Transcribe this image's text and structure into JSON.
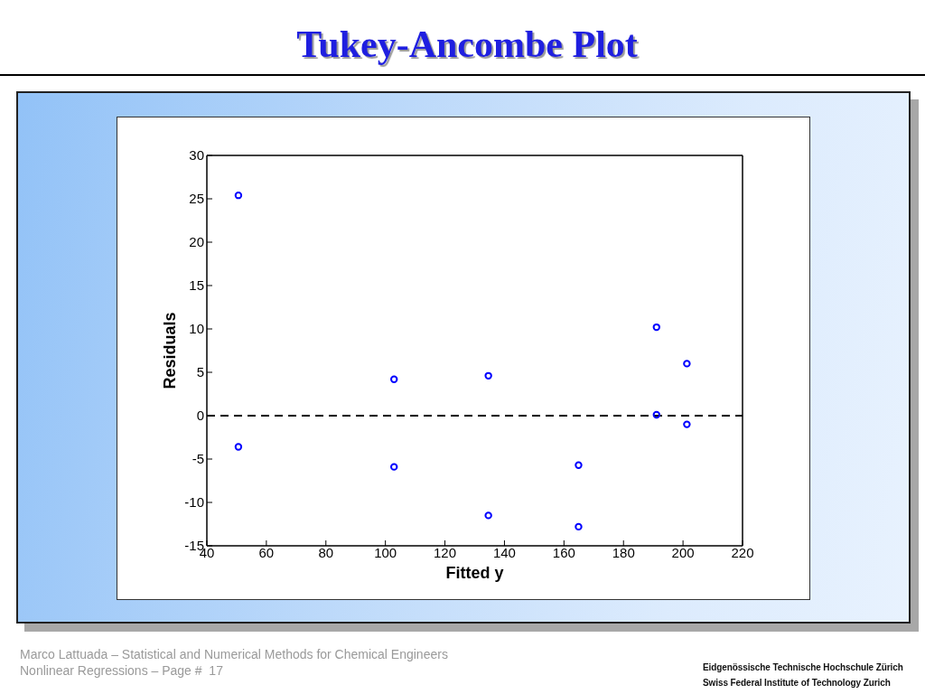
{
  "chart_data": {
    "type": "scatter",
    "title": "Tukey-Ancombe Plot",
    "xlabel": "Fitted y",
    "ylabel": "Residuals",
    "x": [
      50.6,
      50.6,
      102.9,
      102.9,
      134.6,
      134.6,
      164.9,
      164.9,
      191.1,
      191.1,
      201.3,
      201.3
    ],
    "series": [
      {
        "color": "#0000ff",
        "values": [
          25.4,
          -3.6,
          4.2,
          -5.9,
          4.6,
          -11.5,
          -5.7,
          -12.8,
          10.2,
          0.1,
          6.0,
          -1.0
        ]
      }
    ],
    "xlim": [
      40,
      220
    ],
    "xticks": [
      40,
      60,
      80,
      100,
      120,
      140,
      160,
      180,
      200,
      220
    ],
    "ylim": [
      -15,
      30
    ],
    "yticks": [
      -15,
      -10,
      -5,
      0,
      5,
      10,
      15,
      20,
      25,
      30
    ],
    "marker": "circle",
    "ref_lines": [
      {
        "axis": "y",
        "value": 0,
        "color": "#000000",
        "line_style": "dashed"
      }
    ],
    "annotations": [
      "Marco Lattuada – Statistical and Numerical Methods for Chemical Engineers",
      "Nonlinear Regressions – Page #  17",
      "Eidgenössische Technische Hochschule Zürich",
      "Swiss Federal Institute of Technology Zurich"
    ]
  }
}
